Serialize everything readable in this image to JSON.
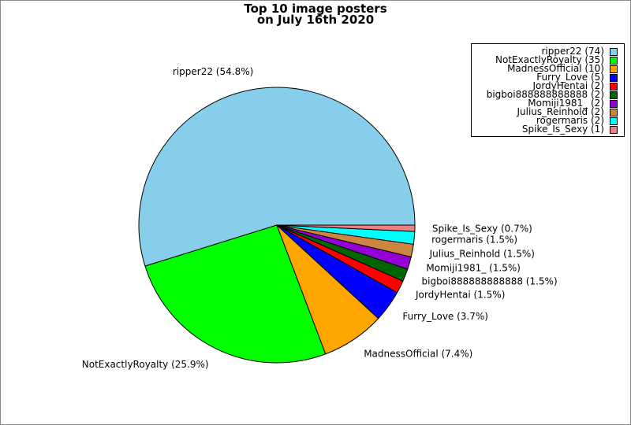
{
  "chart_data": {
    "type": "pie",
    "title_lines": [
      "Top 10 image posters",
      "on July 16th 2020"
    ],
    "slices": [
      {
        "name": "ripper22",
        "value": 74,
        "pct_label": "ripper22 (54.8%)",
        "legend_label": "ripper22 (74)",
        "color": "#87ceeb"
      },
      {
        "name": "NotExactlyRoyalty",
        "value": 35,
        "pct_label": "NotExactlyRoyalty (25.9%)",
        "legend_label": "NotExactlyRoyalty (35)",
        "color": "#00ff00"
      },
      {
        "name": "MadnessOfficial",
        "value": 10,
        "pct_label": "MadnessOfficial (7.4%)",
        "legend_label": "MadnessOfficial (10)",
        "color": "#ffa500"
      },
      {
        "name": "Furry_Love",
        "value": 5,
        "pct_label": "Furry_Love (3.7%)",
        "legend_label": "Furry_Love (5)",
        "color": "#0000ff"
      },
      {
        "name": "JordyHentai",
        "value": 2,
        "pct_label": "JordyHentai (1.5%)",
        "legend_label": "JordyHentai (2)",
        "color": "#ff0000"
      },
      {
        "name": "bigboi888888888888",
        "value": 2,
        "pct_label": "bigboi888888888888 (1.5%)",
        "legend_label": "bigboi888888888888 (2)",
        "color": "#006400"
      },
      {
        "name": "Momiji1981_",
        "value": 2,
        "pct_label": "Momiji1981_ (1.5%)",
        "legend_label": "Momiji1981_ (2)",
        "color": "#9400d3"
      },
      {
        "name": "Julius_Reinhold",
        "value": 2,
        "pct_label": "Julius_Reinhold (1.5%)",
        "legend_label": "Julius_Reinhold (2)",
        "color": "#cd853f"
      },
      {
        "name": "rogermaris",
        "value": 2,
        "pct_label": "rogermaris (1.5%)",
        "legend_label": "rogermaris (2)",
        "color": "#00ffff"
      },
      {
        "name": "Spike_Is_Sexy",
        "value": 1,
        "pct_label": "Spike_Is_Sexy (0.7%)",
        "legend_label": "Spike_Is_Sexy (1)",
        "color": "#f08080"
      }
    ],
    "start_angle_deg": 0,
    "direction": "counterclockwise",
    "legend_position": "top-right"
  }
}
